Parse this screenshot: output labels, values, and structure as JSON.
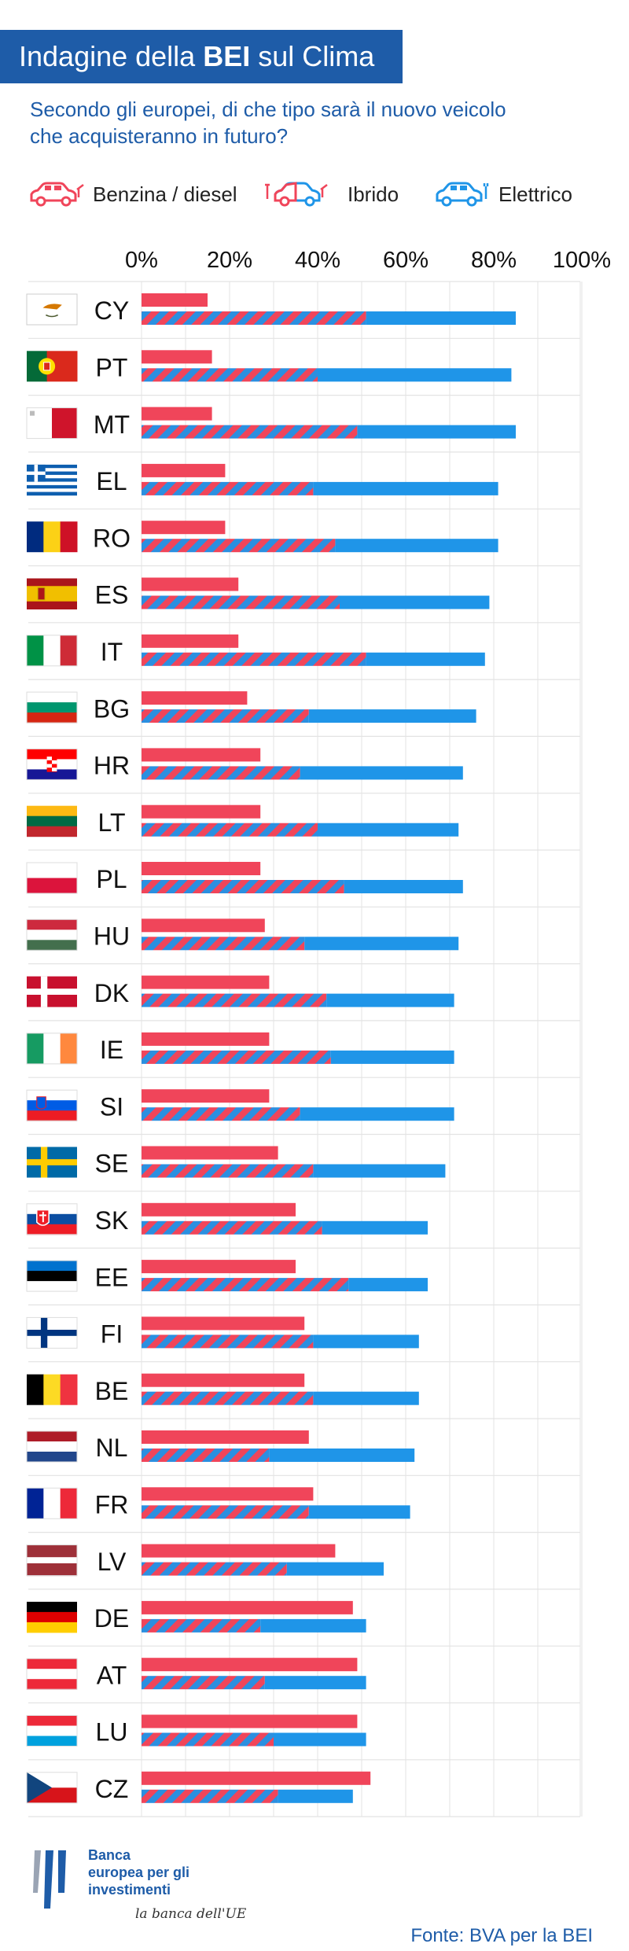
{
  "header": {
    "title_prefix": "Indagine della ",
    "title_bold": "BEI",
    "title_suffix": " sul Clima",
    "subtitle_line1": "Secondo gli europei, di che tipo sarà il nuovo veicolo",
    "subtitle_line2": "che acquisteranno in futuro?"
  },
  "legend": [
    {
      "label": "Benzina / diesel",
      "icon": "petrol-car-icon",
      "color": "#f0455a"
    },
    {
      "label": "Ibrido",
      "icon": "hybrid-car-icon",
      "color": "#f0455a / #1f95e8"
    },
    {
      "label": "Elettrico",
      "icon": "electric-car-icon",
      "color": "#1f95e8"
    }
  ],
  "colors": {
    "petrol": "#f0455a",
    "electric": "#1f95e8",
    "brand_blue": "#1e5ca8",
    "grid": "#e3e3e3"
  },
  "chart_data": {
    "type": "bar",
    "orientation": "horizontal",
    "xlim": [
      0,
      100
    ],
    "xticks": [
      "0%",
      "20%",
      "40%",
      "60%",
      "80%",
      "100%"
    ],
    "grid": true,
    "categories": [
      "CY",
      "PT",
      "MT",
      "EL",
      "RO",
      "ES",
      "IT",
      "BG",
      "HR",
      "LT",
      "PL",
      "HU",
      "DK",
      "IE",
      "SI",
      "SE",
      "SK",
      "EE",
      "FI",
      "BE",
      "NL",
      "FR",
      "LV",
      "DE",
      "AT",
      "LU",
      "CZ"
    ],
    "series": [
      {
        "name": "Benzina / diesel",
        "values": [
          15,
          16,
          16,
          19,
          19,
          22,
          22,
          24,
          27,
          27,
          27,
          28,
          29,
          29,
          29,
          31,
          35,
          35,
          37,
          37,
          38,
          39,
          44,
          48,
          49,
          49,
          52
        ]
      },
      {
        "name": "Ibrido",
        "values": [
          51,
          40,
          49,
          39,
          44,
          45,
          51,
          38,
          36,
          40,
          46,
          37,
          42,
          43,
          36,
          39,
          41,
          47,
          39,
          39,
          29,
          38,
          33,
          27,
          28,
          30,
          31
        ]
      },
      {
        "name": "Elettrico",
        "values": [
          34,
          44,
          36,
          42,
          37,
          34,
          27,
          38,
          37,
          32,
          27,
          35,
          29,
          28,
          35,
          30,
          24,
          18,
          24,
          24,
          33,
          23,
          22,
          24,
          23,
          21,
          17
        ]
      }
    ]
  },
  "footer": {
    "logo_line1": "Banca",
    "logo_line2": "europea per gli",
    "logo_line3": "investimenti",
    "logo_tagline": "la banca dell'UE",
    "source": "Fonte: BVA per la BEI"
  }
}
